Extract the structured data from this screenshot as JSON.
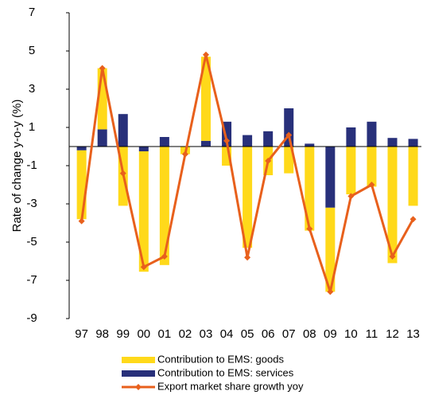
{
  "chart_data": {
    "type": "combo",
    "stacked": true,
    "y_label": "Rate of change y-o-y (%)",
    "categories": [
      "97",
      "98",
      "99",
      "00",
      "01",
      "02",
      "03",
      "04",
      "05",
      "06",
      "07",
      "08",
      "09",
      "10",
      "11",
      "12",
      "13"
    ],
    "series": [
      {
        "name": "Contribution to EMS: goods",
        "type": "bar",
        "color": "#FFD91A",
        "values": [
          -3.6,
          3.2,
          -3.1,
          -6.3,
          -6.2,
          -0.4,
          4.4,
          -1.0,
          -5.3,
          -1.5,
          -1.4,
          -4.4,
          -4.4,
          -2.5,
          -2.1,
          -6.1,
          -3.1
        ]
      },
      {
        "name": "Contribution to EMS: services",
        "type": "bar",
        "color": "#28307A",
        "values": [
          -0.2,
          0.9,
          1.7,
          -0.25,
          0.5,
          0.0,
          0.3,
          1.3,
          0.6,
          0.8,
          2.0,
          0.15,
          -3.2,
          1.0,
          1.3,
          0.45,
          0.4
        ]
      },
      {
        "name": "Export market share growth yoy",
        "type": "line",
        "color": "#E8601C",
        "values": [
          -3.9,
          4.1,
          -1.4,
          -6.3,
          -5.75,
          -0.4,
          4.8,
          0.3,
          -5.8,
          -0.75,
          0.6,
          -4.3,
          -7.6,
          -2.6,
          -2.0,
          -5.75,
          -3.8
        ]
      }
    ],
    "ylim": [
      -9,
      7
    ],
    "yticks": [
      -9,
      -7,
      -5,
      -3,
      -1,
      1,
      3,
      5,
      7
    ]
  }
}
